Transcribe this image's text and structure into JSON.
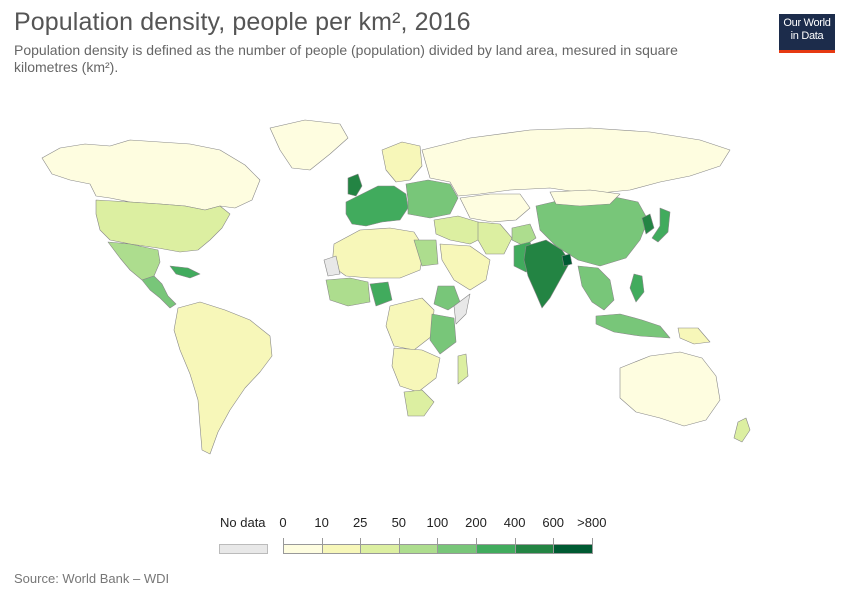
{
  "header": {
    "title": "Population density, people per km², 2016",
    "subtitle": "Population density is defined as the number of people (population) divided by land area, mesured in square kilometres (km²)."
  },
  "logo": {
    "line1": "Our World",
    "line2": "in Data",
    "bg_color": "#1c2c4b",
    "bar_color": "#e63912"
  },
  "legend": {
    "no_data_label": "No data",
    "no_data_color": "#e8e8e8",
    "ticks": [
      "0",
      "10",
      "25",
      "50",
      "100",
      "200",
      "400",
      "600",
      ">800"
    ],
    "colors": [
      "#fefde0",
      "#f7f7b9",
      "#dcefa1",
      "#addd8e",
      "#78c679",
      "#41ab5d",
      "#238443",
      "#005a32"
    ]
  },
  "regions": [
    {
      "name": "North America",
      "color": "#fefde0"
    },
    {
      "name": "Greenland",
      "color": "#fefde0"
    },
    {
      "name": "United States",
      "color": "#dcefa1"
    },
    {
      "name": "Mexico",
      "color": "#addd8e"
    },
    {
      "name": "Central America",
      "color": "#78c679"
    },
    {
      "name": "Caribbean",
      "color": "#41ab5d"
    },
    {
      "name": "South America",
      "color": "#f7f7b9"
    },
    {
      "name": "Europe West",
      "color": "#41ab5d"
    },
    {
      "name": "Europe East",
      "color": "#78c679"
    },
    {
      "name": "Scandinavia",
      "color": "#f7f7b9"
    },
    {
      "name": "United Kingdom",
      "color": "#238443"
    },
    {
      "name": "Russia",
      "color": "#fefde0"
    },
    {
      "name": "Kazakhstan",
      "color": "#fefde0"
    },
    {
      "name": "Middle East",
      "color": "#dcefa1"
    },
    {
      "name": "Iran",
      "color": "#dcefa1"
    },
    {
      "name": "Arabia",
      "color": "#f7f7b9"
    },
    {
      "name": "North Africa",
      "color": "#f7f7b9"
    },
    {
      "name": "Egypt",
      "color": "#addd8e"
    },
    {
      "name": "West Africa",
      "color": "#addd8e"
    },
    {
      "name": "Nigeria",
      "color": "#41ab5d"
    },
    {
      "name": "Central Africa",
      "color": "#f7f7b9"
    },
    {
      "name": "East Africa",
      "color": "#78c679"
    },
    {
      "name": "Ethiopia",
      "color": "#78c679"
    },
    {
      "name": "Southern Africa",
      "color": "#f7f7b9"
    },
    {
      "name": "South Africa",
      "color": "#dcefa1"
    },
    {
      "name": "Madagascar",
      "color": "#dcefa1"
    },
    {
      "name": "Western Sahara",
      "color": "#e8e8e8"
    },
    {
      "name": "Somalia",
      "color": "#e8e8e8"
    },
    {
      "name": "India",
      "color": "#238443"
    },
    {
      "name": "Bangladesh",
      "color": "#005a32"
    },
    {
      "name": "Pakistan",
      "color": "#41ab5d"
    },
    {
      "name": "Afghanistan",
      "color": "#addd8e"
    },
    {
      "name": "China",
      "color": "#78c679"
    },
    {
      "name": "Mongolia",
      "color": "#fefde0"
    },
    {
      "name": "Korea",
      "color": "#238443"
    },
    {
      "name": "Japan",
      "color": "#41ab5d"
    },
    {
      "name": "Southeast Asia",
      "color": "#78c679"
    },
    {
      "name": "Philippines",
      "color": "#41ab5d"
    },
    {
      "name": "Indonesia",
      "color": "#78c679"
    },
    {
      "name": "Papua New Guinea",
      "color": "#f7f7b9"
    },
    {
      "name": "Australia",
      "color": "#fefde0"
    },
    {
      "name": "New Zealand",
      "color": "#dcefa1"
    }
  ],
  "source": "Source: World Bank – WDI"
}
